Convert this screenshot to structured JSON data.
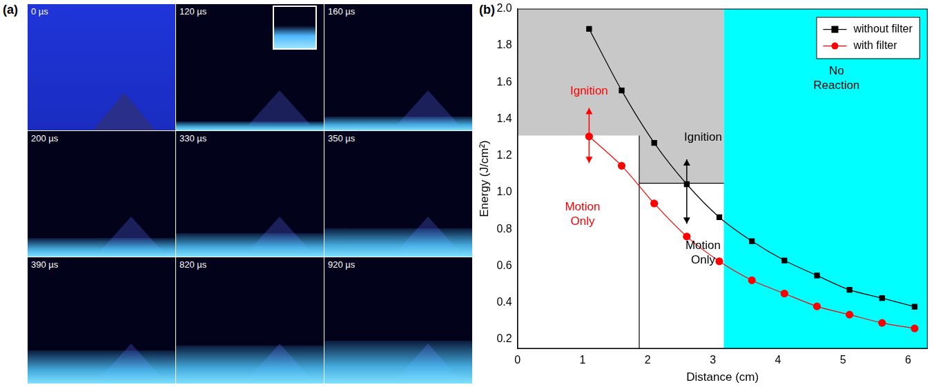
{
  "image_panel": {
    "label": "(a)",
    "frames": [
      "0 µs",
      "120 µs",
      "160 µs",
      "200 µs",
      "330 µs",
      "350 µs",
      "390 µs",
      "820 µs",
      "920 µs"
    ]
  },
  "chart_data": {
    "type": "line",
    "panel": "(b)",
    "x_label": "Distance (cm)",
    "y_label": "Energy (J/cm²)",
    "x": [
      1.1,
      1.6,
      2.1,
      2.6,
      3.1,
      3.6,
      4.1,
      4.6,
      5.1,
      5.6,
      6.1
    ],
    "series": [
      {
        "name": "without filter",
        "color": "#000000",
        "marker": "square",
        "line_style": "solid",
        "values": [
          1.89,
          1.555,
          1.27,
          1.045,
          0.865,
          0.735,
          0.63,
          0.548,
          0.47,
          0.425,
          0.378
        ]
      },
      {
        "name": "with filter",
        "color": "#ff0000",
        "marker": "circle",
        "line_style": "solid",
        "values": [
          1.305,
          1.145,
          0.94,
          0.76,
          0.625,
          0.522,
          0.45,
          0.38,
          0.335,
          0.29,
          0.26
        ]
      }
    ],
    "xlim": [
      0,
      6.3
    ],
    "xticks": [
      0,
      1,
      2,
      3,
      4,
      5,
      6
    ],
    "ylim": [
      0.15,
      2.0
    ],
    "yticks": [
      0.2,
      0.4,
      0.6,
      0.8,
      {
        "value": 1.0,
        "label": "1.0"
      },
      1.2,
      1.4,
      1.6,
      1.8,
      {
        "value": 2.0,
        "label": "2.0"
      }
    ],
    "grid": false,
    "legend": "top-right",
    "regions": [
      {
        "color": "#c8c8c8",
        "x": [
          0,
          1.87
        ],
        "y": [
          1.31,
          2.0
        ]
      },
      {
        "color": "#c8c8c8",
        "x": [
          1.87,
          3.17
        ],
        "y": [
          1.05,
          2.0
        ]
      },
      {
        "color": "#00ffff",
        "x": [
          3.17,
          6.3
        ],
        "y": [
          0.15,
          2.0
        ]
      }
    ],
    "lines": [
      {
        "color": "#000000",
        "x": [
          1.87,
          1.87
        ],
        "y": [
          0.15,
          1.31
        ]
      },
      {
        "color": "#000000",
        "x": [
          1.87,
          3.17
        ],
        "y": [
          1.05,
          1.05
        ]
      }
    ],
    "arrows": [
      {
        "color": "#ff0000",
        "x": 1.1,
        "y": [
          1.16,
          1.46
        ]
      },
      {
        "color": "#000000",
        "x": 2.6,
        "y": [
          0.83,
          1.18
        ]
      }
    ],
    "annotations": [
      {
        "text": "Ignition",
        "color": "#ff0000",
        "x": 1.1,
        "y": 1.55
      },
      {
        "text": "Motion Only",
        "color": "#ff0000",
        "x": 1.0,
        "y": 0.88
      },
      {
        "text": "Ignition",
        "color": "#000000",
        "x": 2.85,
        "y": 1.3
      },
      {
        "text": "Motion Only",
        "color": "#000000",
        "x": 2.85,
        "y": 0.67
      },
      {
        "text": "No Reaction",
        "color": "#000000",
        "x": 4.9,
        "y": 1.62
      }
    ]
  }
}
